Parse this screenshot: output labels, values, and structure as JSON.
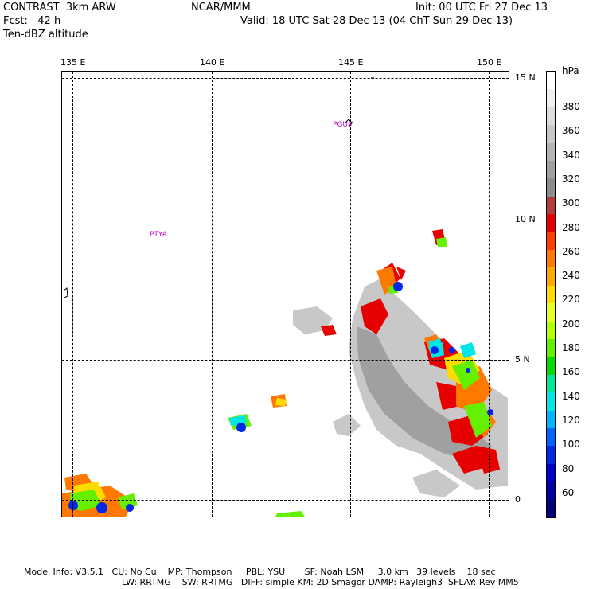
{
  "header": {
    "left_line1": "CONTRAST  3km ARW",
    "left_line2": "Fcst:   42 h",
    "left_line3": "Ten-dBZ altitude",
    "center": "NCAR/MMM",
    "right_line1": "Init: 00 UTC Fri 27 Dec 13",
    "right_line2": "Valid: 18 UTC Sat 28 Dec 13 (04 ChT Sun 29 Dec 13)"
  },
  "lon_labels": [
    "135 E",
    "140 E",
    "145 E",
    "150 E"
  ],
  "lat_labels": [
    "15 N",
    "10 N",
    "5 N",
    "0"
  ],
  "places": [
    "PGUM",
    "PTYA"
  ],
  "colorbar": {
    "unit": "hPa",
    "ticks": [
      "380",
      "360",
      "340",
      "320",
      "300",
      "280",
      "260",
      "240",
      "220",
      "200",
      "180",
      "160",
      "140",
      "120",
      "100",
      "80",
      "60"
    ],
    "colors": [
      "#ffffff",
      "#f0f0f0",
      "#dcdcdc",
      "#c8c8c8",
      "#b4b4b4",
      "#a0a0a0",
      "#8c8c8c",
      "#b43c3c",
      "#e60000",
      "#ff3c00",
      "#ff7800",
      "#ffaa00",
      "#ffdc00",
      "#e6ff28",
      "#b4ff00",
      "#64f000",
      "#00dc00",
      "#00e69b",
      "#00e6e6",
      "#00b4ff",
      "#0064ff",
      "#0028e6",
      "#0000c8",
      "#0000a0",
      "#000078"
    ]
  },
  "footer": {
    "line1": "Model Info: V3.5.1   CU: No Cu    MP: Thompson     PBL: YSU       SF: Noah LSM     3.0 km   39 levels    18 sec",
    "line2": "LW: RRTMG    SW: RRTMG   DIFF: simple KM: 2D Smagor DAMP: Rayleigh3  SFLAY: Rev MM5"
  },
  "accent": {
    "place_color": "#cc00cc"
  }
}
